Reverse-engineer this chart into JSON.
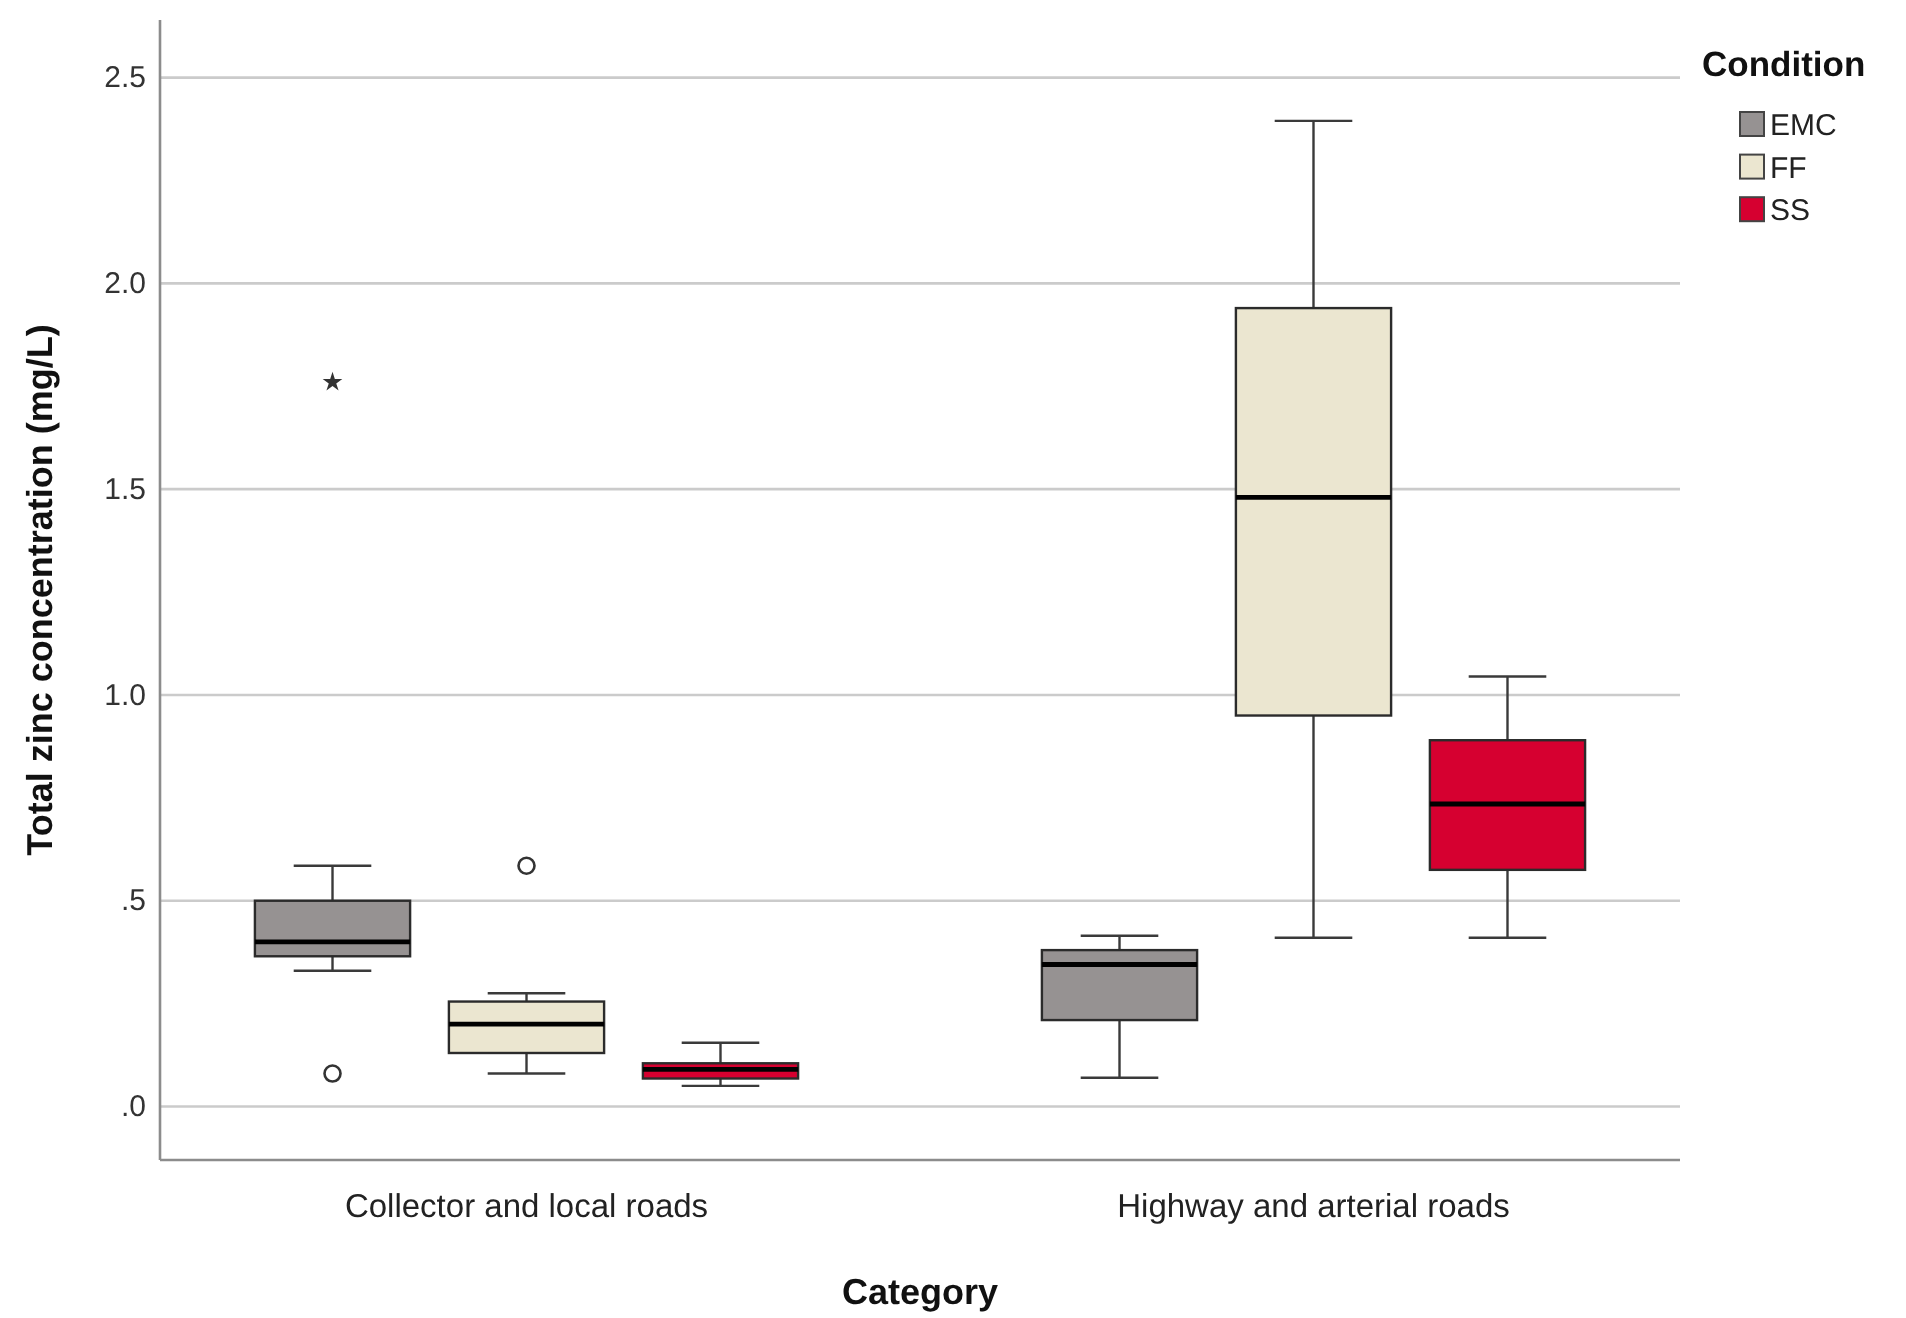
{
  "chart_data": {
    "type": "box",
    "xlabel": "Category",
    "ylabel": "Total zinc concentration (mg/L)",
    "legend_title": "Condition",
    "categories": [
      "Collector and local roads",
      "Highway and arterial roads"
    ],
    "series": [
      {
        "name": "EMC",
        "color": "#969292",
        "boxes": [
          {
            "low": 0.33,
            "q1": 0.365,
            "median": 0.4,
            "q3": 0.5,
            "high": 0.585,
            "outliers": [
              0.08,
              1.76
            ]
          },
          {
            "low": 0.07,
            "q1": 0.21,
            "median": 0.345,
            "q3": 0.38,
            "high": 0.415
          }
        ]
      },
      {
        "name": "FF",
        "color": "#ebe6d0",
        "boxes": [
          {
            "low": 0.08,
            "q1": 0.13,
            "median": 0.2,
            "q3": 0.255,
            "high": 0.275,
            "outliers": [
              0.585
            ]
          },
          {
            "low": 0.41,
            "q1": 0.95,
            "median": 1.48,
            "q3": 1.94,
            "high": 2.395
          }
        ]
      },
      {
        "name": "SS",
        "color": "#d60030",
        "boxes": [
          {
            "low": 0.05,
            "q1": 0.068,
            "median": 0.09,
            "q3": 0.105,
            "high": 0.155
          },
          {
            "low": 0.41,
            "q1": 0.575,
            "median": 0.735,
            "q3": 0.89,
            "high": 1.045
          }
        ]
      }
    ],
    "ylim": [
      -0.13,
      2.64
    ],
    "yticks": [
      {
        "value": 0,
        "label": ".0"
      },
      {
        "value": 0.5,
        "label": ".5"
      },
      {
        "value": 1,
        "label": "1.0"
      },
      1.5,
      {
        "value": 2,
        "label": "2.0"
      },
      2.5
    ],
    "grid": "y",
    "legend": "top right"
  }
}
